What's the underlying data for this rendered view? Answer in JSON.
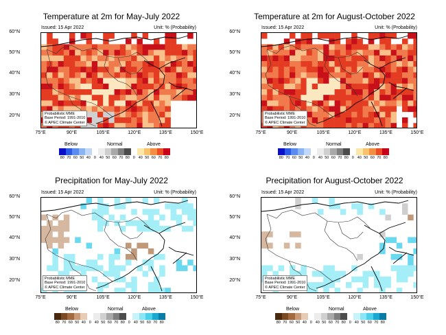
{
  "panels": [
    {
      "title": "Temperature at 2m for May-July 2022",
      "issued": "Issued: 15 Apr 2022",
      "unit": "Unit: % (Probability)",
      "kind": "temp",
      "variant": 0
    },
    {
      "title": "Temperature at 2m for August-October 2022",
      "issued": "Issued: 15 Apr 2022",
      "unit": "Unit: % (Probability)",
      "kind": "temp",
      "variant": 1
    },
    {
      "title": "Precipitation for May-July 2022",
      "issued": "Issued: 15 Apr 2022",
      "unit": "Unit: % (Probability)",
      "kind": "prec",
      "variant": 0
    },
    {
      "title": "Precipitation for August-October 2022",
      "issued": "Issued: 15 Apr 2022",
      "unit": "Unit: % (Probability)",
      "kind": "prec",
      "variant": 1
    }
  ],
  "lat_labels": [
    "60°N",
    "50°N",
    "40°N",
    "30°N",
    "20°N"
  ],
  "lon_labels": [
    "75°E",
    "90°E",
    "105°E",
    "120°E",
    "135°E",
    "150°E"
  ],
  "info": {
    "line1": "Probabilistic MME",
    "line2": "Base Period: 1991-2010",
    "line3": "© APEC Climate Center"
  },
  "legend": {
    "below": "Below",
    "normal": "Normal",
    "above": "Above",
    "ticks": [
      "80",
      "70",
      "60",
      "50",
      "40",
      "0",
      "40",
      "50",
      "60",
      "70",
      "80",
      "0",
      "40",
      "50",
      "60",
      "70",
      "80"
    ],
    "temp_colors": [
      "#0a10c8",
      "#2a5ae6",
      "#5a8cf0",
      "#8cb4f4",
      "#c2d8f8",
      "#ffffff",
      "#ececec",
      "#cfcfcf",
      "#a8a8a8",
      "#7e7e7e",
      "#4c4c4c",
      "#ffffff",
      "#fbe7a8",
      "#f8c16c",
      "#f48e44",
      "#ec4c24",
      "#c8001a"
    ],
    "prec_colors": [
      "#4a2a0e",
      "#7a4a22",
      "#a26a3e",
      "#c89a76",
      "#e6ccb4",
      "#ffffff",
      "#ececec",
      "#cfcfcf",
      "#a8a8a8",
      "#7e7e7e",
      "#4c4c4c",
      "#ffffff",
      "#c6f4fa",
      "#8ae6f4",
      "#4cd0ea",
      "#1aa8d0",
      "#0a7ca8"
    ]
  },
  "palette": {
    "temp_light": "#f8c08a",
    "temp_mid": "#f07a4c",
    "temp_high": "#e43c22",
    "temp_vhigh": "#c8101a",
    "temp_pale": "#fce8c0",
    "temp_gray": "#d0d0d0",
    "prec_wet": "#a4eef8",
    "prec_wet2": "#6ad8ee",
    "prec_dry": "#d6b8a0",
    "prec_dry2": "#c0987a",
    "prec_gray": "#cfcfcf"
  }
}
